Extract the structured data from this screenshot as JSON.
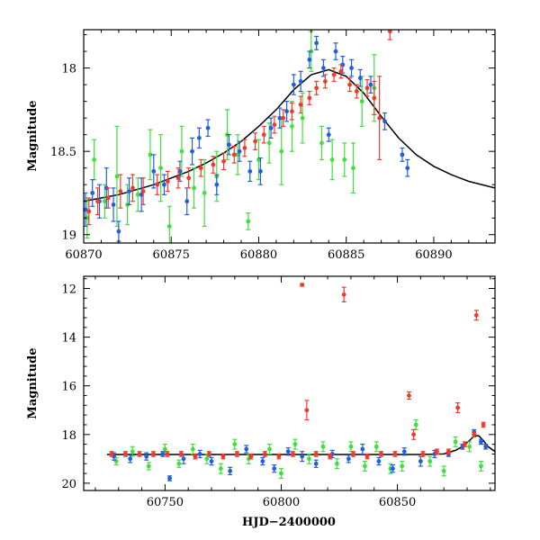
{
  "chart_data": [
    {
      "type": "scatter",
      "title": "",
      "xlabel": "",
      "ylabel": "Magnitude",
      "xlim": [
        60870,
        60893.5
      ],
      "ylim": [
        19.05,
        17.77
      ],
      "y_inverted": true,
      "x_ticks": [
        60870,
        60875,
        60880,
        60885,
        60890
      ],
      "y_ticks": [
        18,
        18.5,
        19
      ],
      "series": [
        {
          "color": "#1f5fe0",
          "points": [
            [
              60870.1,
              18.85,
              0.1
            ],
            [
              60870.5,
              18.75,
              0.08
            ],
            [
              60870.9,
              18.8,
              0.1
            ],
            [
              60871.3,
              18.72,
              0.12
            ],
            [
              60871.7,
              18.82,
              0.1
            ],
            [
              60872.0,
              18.98,
              0.06
            ],
            [
              60872.6,
              18.74,
              0.08
            ],
            [
              60873.3,
              18.76,
              0.1
            ],
            [
              60874.0,
              18.62,
              0.1
            ],
            [
              60874.6,
              18.7,
              0.06
            ],
            [
              60875.5,
              18.62,
              0.06
            ],
            [
              60875.9,
              18.8,
              0.08
            ],
            [
              60876.2,
              18.5,
              0.08
            ],
            [
              60876.6,
              18.42,
              0.06
            ],
            [
              60877.1,
              18.36,
              0.05
            ],
            [
              60877.6,
              18.7,
              0.06
            ],
            [
              60878.3,
              18.46,
              0.06
            ],
            [
              60878.9,
              18.5,
              0.06
            ],
            [
              60879.5,
              18.62,
              0.06
            ],
            [
              60880.1,
              18.62,
              0.08
            ],
            [
              60880.7,
              18.36,
              0.06
            ],
            [
              60881.2,
              18.3,
              0.06
            ],
            [
              60881.6,
              18.26,
              0.06
            ],
            [
              60882.0,
              18.1,
              0.06
            ],
            [
              60882.4,
              18.08,
              0.06
            ],
            [
              60882.9,
              17.95,
              0.05
            ],
            [
              60883.3,
              17.85,
              0.04
            ],
            [
              60883.7,
              18.0,
              0.05
            ],
            [
              60884.0,
              18.4,
              0.04
            ],
            [
              60884.4,
              17.9,
              0.05
            ],
            [
              60884.8,
              17.98,
              0.05
            ],
            [
              60885.3,
              18.0,
              0.05
            ],
            [
              60885.8,
              18.06,
              0.05
            ],
            [
              60886.4,
              18.1,
              0.05
            ],
            [
              60887.2,
              18.32,
              0.05
            ],
            [
              60888.2,
              18.52,
              0.04
            ],
            [
              60888.5,
              18.6,
              0.05
            ]
          ]
        },
        {
          "color": "#ef3b2c",
          "points": [
            [
              60870.3,
              18.86,
              0.08
            ],
            [
              60870.8,
              18.8,
              0.08
            ],
            [
              60871.4,
              18.78,
              0.06
            ],
            [
              60872.1,
              18.74,
              0.1
            ],
            [
              60872.8,
              18.72,
              0.08
            ],
            [
              60873.4,
              18.74,
              0.08
            ],
            [
              60874.2,
              18.7,
              0.06
            ],
            [
              60874.8,
              18.68,
              0.06
            ],
            [
              60875.4,
              18.66,
              0.06
            ],
            [
              60876.0,
              18.66,
              0.06
            ],
            [
              60876.7,
              18.6,
              0.05
            ],
            [
              60877.4,
              18.58,
              0.05
            ],
            [
              60878.0,
              18.56,
              0.05
            ],
            [
              60878.6,
              18.52,
              0.05
            ],
            [
              60879.2,
              18.48,
              0.05
            ],
            [
              60879.8,
              18.44,
              0.05
            ],
            [
              60880.3,
              18.4,
              0.05
            ],
            [
              60880.9,
              18.34,
              0.05
            ],
            [
              60881.4,
              18.3,
              0.05
            ],
            [
              60881.9,
              18.26,
              0.05
            ],
            [
              60882.4,
              18.22,
              0.05
            ],
            [
              60882.9,
              18.18,
              0.04
            ],
            [
              60883.3,
              18.12,
              0.04
            ],
            [
              60883.8,
              18.08,
              0.04
            ],
            [
              60884.3,
              18.04,
              0.04
            ],
            [
              60884.7,
              18.02,
              0.04
            ],
            [
              60885.2,
              18.1,
              0.04
            ],
            [
              60885.6,
              18.14,
              0.04
            ],
            [
              60886.2,
              18.12,
              0.05
            ],
            [
              60886.6,
              18.18,
              0.1
            ],
            [
              60886.9,
              18.3,
              0.25
            ],
            [
              60887.5,
              17.78,
              0.05
            ]
          ]
        },
        {
          "color": "#3ee03b",
          "points": [
            [
              60870.2,
              18.9,
              0.12
            ],
            [
              60870.6,
              18.55,
              0.12
            ],
            [
              60871.2,
              18.8,
              0.1
            ],
            [
              60871.9,
              18.65,
              0.3
            ],
            [
              60872.5,
              18.82,
              0.12
            ],
            [
              60873.1,
              18.76,
              0.1
            ],
            [
              60873.8,
              18.52,
              0.15
            ],
            [
              60874.4,
              18.6,
              0.2
            ],
            [
              60874.9,
              18.95,
              0.12
            ],
            [
              60875.6,
              18.5,
              0.15
            ],
            [
              60876.3,
              18.72,
              0.12
            ],
            [
              60876.9,
              18.75,
              0.2
            ],
            [
              60877.6,
              18.65,
              0.15
            ],
            [
              60878.2,
              18.4,
              0.15
            ],
            [
              60878.8,
              18.52,
              0.12
            ],
            [
              60879.4,
              18.92,
              0.05
            ],
            [
              60880.0,
              18.55,
              0.12
            ],
            [
              60880.6,
              18.45,
              0.12
            ],
            [
              60881.3,
              18.5,
              0.2
            ],
            [
              60881.9,
              18.35,
              0.15
            ],
            [
              60882.5,
              18.3,
              0.15
            ],
            [
              60883.0,
              17.9,
              0.12
            ],
            [
              60883.6,
              18.45,
              0.1
            ],
            [
              60884.2,
              18.55,
              0.12
            ],
            [
              60884.9,
              18.55,
              0.1
            ],
            [
              60885.4,
              18.6,
              0.15
            ],
            [
              60885.9,
              18.2,
              0.15
            ],
            [
              60886.6,
              18.12,
              0.2
            ]
          ]
        }
      ],
      "model_curve": {
        "color": "#000000",
        "x": [
          60870,
          60871,
          60872,
          60873,
          60874,
          60875,
          60876,
          60877,
          60878,
          60879,
          60880,
          60881,
          60882,
          60883,
          60884,
          60885,
          60886,
          60887,
          60888,
          60889,
          60890,
          60891,
          60892,
          60893.5
        ],
        "y": [
          18.8,
          18.78,
          18.76,
          18.73,
          18.7,
          18.66,
          18.62,
          18.57,
          18.51,
          18.44,
          18.35,
          18.25,
          18.13,
          18.04,
          18.01,
          18.05,
          18.15,
          18.29,
          18.42,
          18.52,
          18.59,
          18.64,
          18.68,
          18.72
        ]
      }
    },
    {
      "type": "scatter",
      "title": "",
      "xlabel": "HJD−2400000",
      "ylabel": "Magnitude",
      "xlim": [
        60715,
        60892
      ],
      "ylim": [
        20.3,
        11.5
      ],
      "y_inverted": true,
      "x_ticks": [
        60750,
        60800,
        60850
      ],
      "y_ticks": [
        12,
        14,
        16,
        18,
        20
      ],
      "series": [
        {
          "color": "#1f5fe0",
          "points": [
            [
              60728,
              18.9,
              0.15
            ],
            [
              60735,
              19.0,
              0.15
            ],
            [
              60742,
              18.9,
              0.15
            ],
            [
              60749,
              18.8,
              0.1
            ],
            [
              60752,
              19.8,
              0.1
            ],
            [
              60758,
              19.0,
              0.2
            ],
            [
              60765,
              18.8,
              0.15
            ],
            [
              60770,
              19.1,
              0.15
            ],
            [
              60778,
              19.5,
              0.15
            ],
            [
              60785,
              18.6,
              0.15
            ],
            [
              60792,
              19.1,
              0.15
            ],
            [
              60797,
              19.4,
              0.15
            ],
            [
              60803,
              18.7,
              0.15
            ],
            [
              60809,
              18.9,
              0.2
            ],
            [
              60815,
              19.2,
              0.15
            ],
            [
              60822,
              18.8,
              0.15
            ],
            [
              60829,
              19.0,
              0.15
            ],
            [
              60835,
              18.6,
              0.2
            ],
            [
              60842,
              19.1,
              0.15
            ],
            [
              60848,
              19.4,
              0.15
            ],
            [
              60853,
              18.7,
              0.15
            ],
            [
              60860,
              19.1,
              0.2
            ],
            [
              60866,
              18.8,
              0.15
            ],
            [
              60872,
              18.8,
              0.1
            ],
            [
              60878,
              18.5,
              0.1
            ],
            [
              60883,
              17.9,
              0.1
            ],
            [
              60886,
              18.3,
              0.1
            ],
            [
              60888,
              18.5,
              0.1
            ]
          ]
        },
        {
          "color": "#ef3b2c",
          "points": [
            [
              60727,
              18.8,
              0.1
            ],
            [
              60733,
              18.8,
              0.1
            ],
            [
              60739,
              18.8,
              0.1
            ],
            [
              60745,
              18.8,
              0.1
            ],
            [
              60751,
              18.8,
              0.1
            ],
            [
              60757,
              18.8,
              0.1
            ],
            [
              60763,
              18.9,
              0.1
            ],
            [
              60769,
              18.8,
              0.1
            ],
            [
              60775,
              18.9,
              0.1
            ],
            [
              60781,
              18.8,
              0.1
            ],
            [
              60787,
              18.9,
              0.1
            ],
            [
              60793,
              18.8,
              0.1
            ],
            [
              60799,
              18.9,
              0.1
            ],
            [
              60805,
              18.8,
              0.1
            ],
            [
              60809,
              11.85,
              0.05
            ],
            [
              60811,
              17.0,
              0.4
            ],
            [
              60815,
              18.8,
              0.1
            ],
            [
              60821,
              18.9,
              0.1
            ],
            [
              60827,
              12.25,
              0.3
            ],
            [
              60831,
              18.8,
              0.1
            ],
            [
              60837,
              18.9,
              0.1
            ],
            [
              60843,
              18.8,
              0.1
            ],
            [
              60849,
              18.8,
              0.1
            ],
            [
              60855,
              16.4,
              0.15
            ],
            [
              60857,
              18.0,
              0.2
            ],
            [
              60861,
              18.8,
              0.1
            ],
            [
              60867,
              18.7,
              0.1
            ],
            [
              60872,
              18.7,
              0.1
            ],
            [
              60876,
              16.9,
              0.2
            ],
            [
              60879,
              18.4,
              0.1
            ],
            [
              60883,
              18.0,
              0.1
            ],
            [
              60884,
              13.1,
              0.2
            ],
            [
              60887,
              17.6,
              0.1
            ]
          ]
        },
        {
          "color": "#3ee03b",
          "points": [
            [
              60729,
              19.1,
              0.15
            ],
            [
              60736,
              18.7,
              0.2
            ],
            [
              60743,
              19.3,
              0.15
            ],
            [
              60750,
              18.6,
              0.2
            ],
            [
              60756,
              19.2,
              0.15
            ],
            [
              60762,
              18.6,
              0.2
            ],
            [
              60768,
              19.0,
              0.2
            ],
            [
              60774,
              19.4,
              0.2
            ],
            [
              60780,
              18.4,
              0.2
            ],
            [
              60786,
              19.0,
              0.2
            ],
            [
              60795,
              18.6,
              0.2
            ],
            [
              60800,
              19.6,
              0.2
            ],
            [
              60806,
              18.4,
              0.2
            ],
            [
              60812,
              19.0,
              0.2
            ],
            [
              60818,
              18.5,
              0.2
            ],
            [
              60824,
              19.2,
              0.2
            ],
            [
              60830,
              18.5,
              0.2
            ],
            [
              60836,
              19.3,
              0.2
            ],
            [
              60841,
              18.5,
              0.2
            ],
            [
              60847,
              19.4,
              0.2
            ],
            [
              60852,
              19.3,
              0.2
            ],
            [
              60858,
              17.6,
              0.2
            ],
            [
              60864,
              19.1,
              0.2
            ],
            [
              60870,
              19.5,
              0.2
            ],
            [
              60875,
              18.3,
              0.2
            ],
            [
              60881,
              18.5,
              0.2
            ],
            [
              60886,
              19.3,
              0.2
            ]
          ]
        }
      ],
      "model_curve": {
        "color": "#000000",
        "x": [
          60725,
          60760,
          60800,
          60840,
          60860,
          60870,
          60875,
          60878,
          60881,
          60883,
          60885,
          60887,
          60889,
          60892
        ],
        "y": [
          18.82,
          18.82,
          18.82,
          18.82,
          18.82,
          18.8,
          18.65,
          18.5,
          18.25,
          18.06,
          18.05,
          18.25,
          18.5,
          18.7
        ]
      }
    }
  ]
}
